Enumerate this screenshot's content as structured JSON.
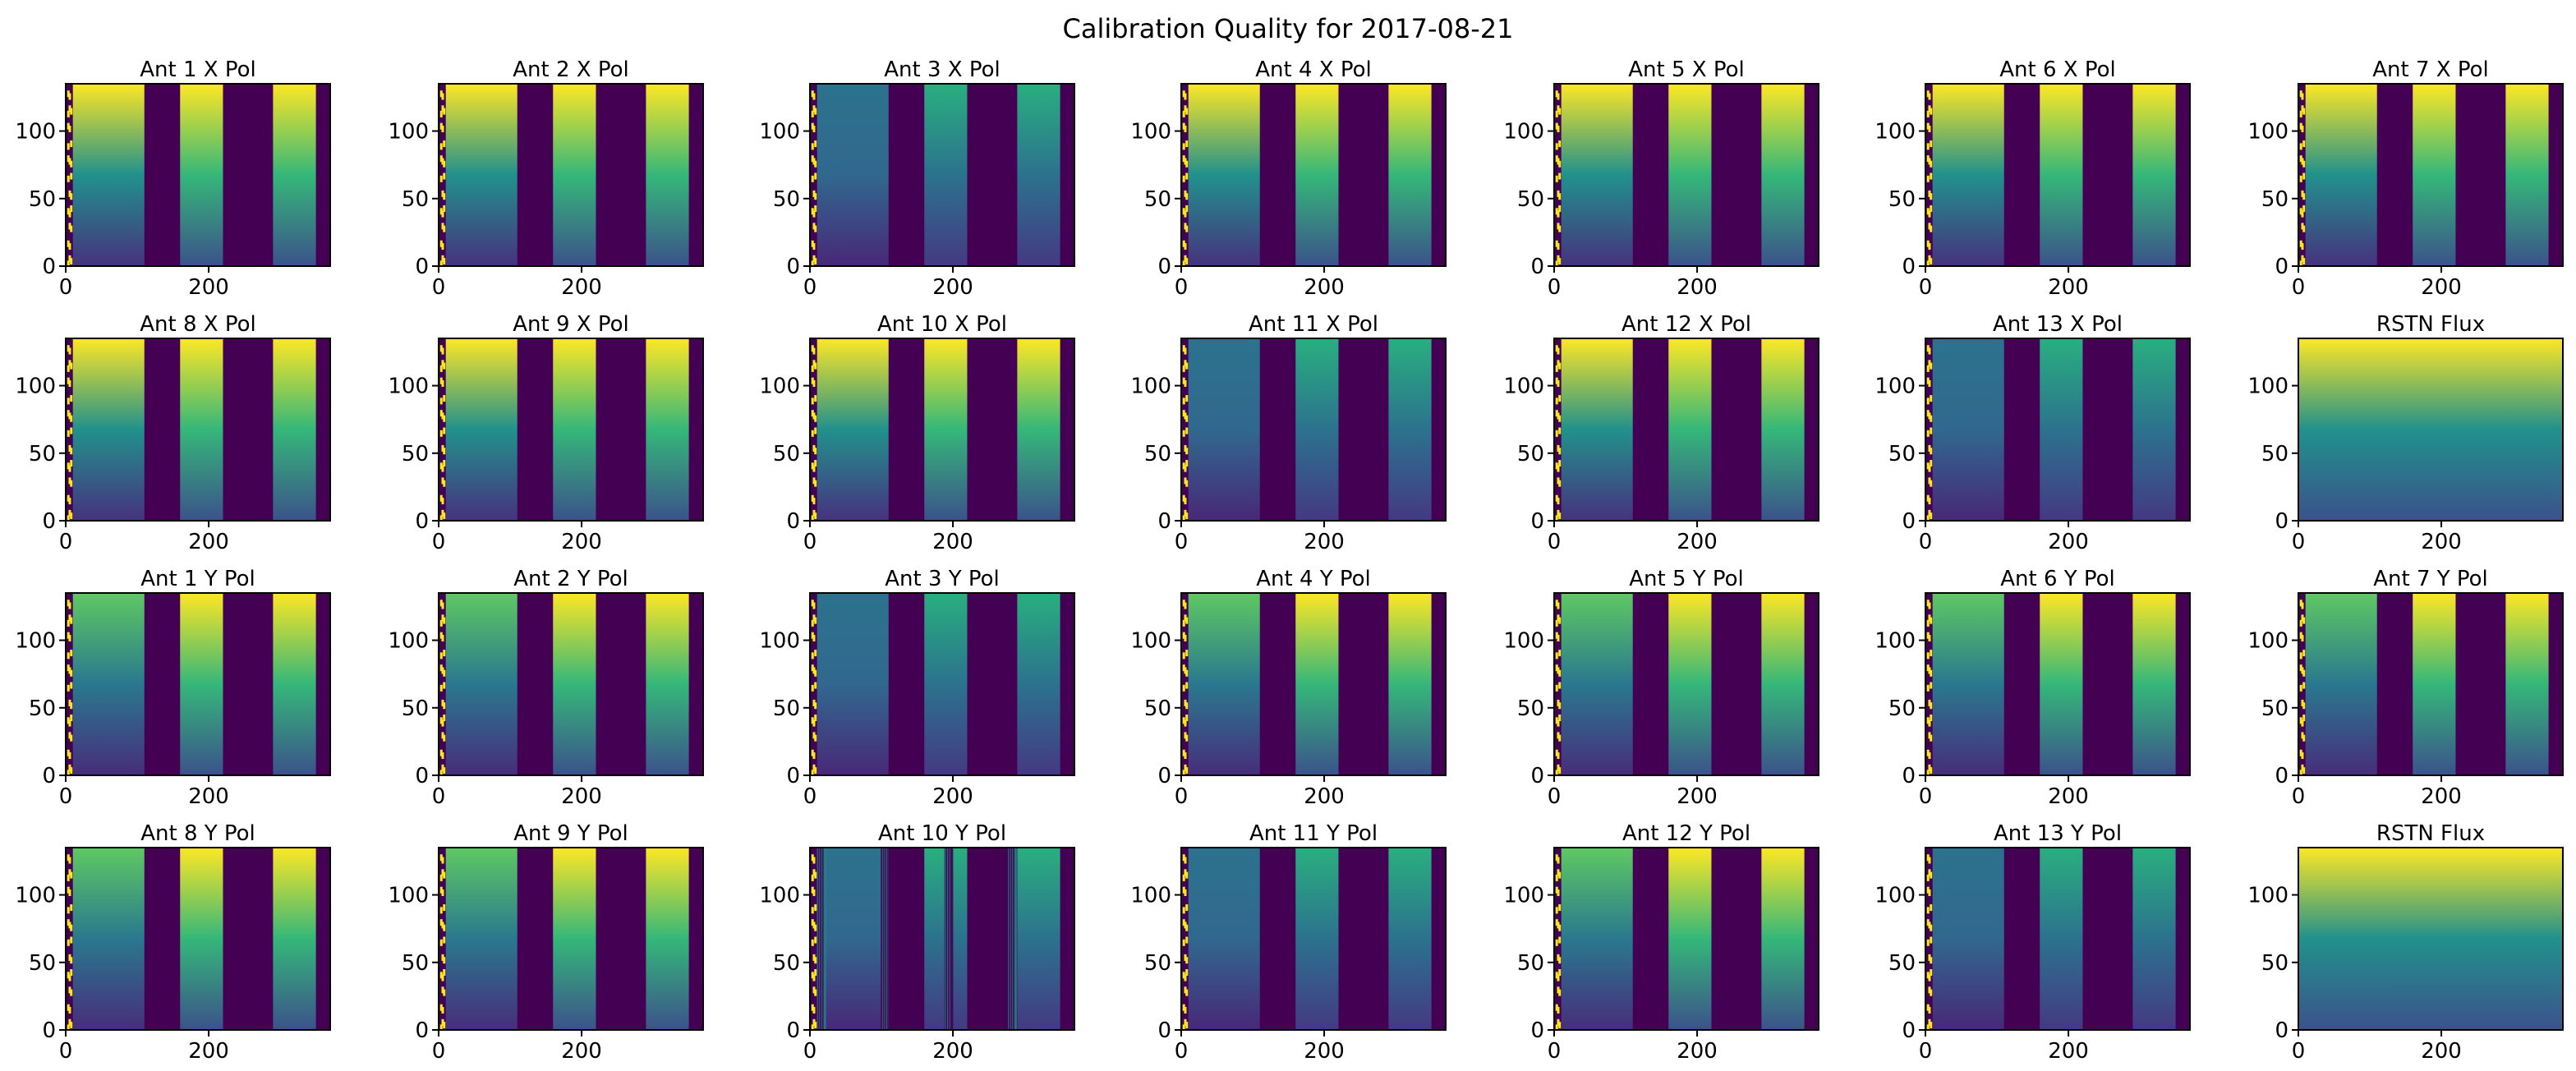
{
  "figure": {
    "title": "Calibration Quality for 2017-08-21"
  },
  "chart_data": {
    "type": "heatmap",
    "layout": {
      "rows": 4,
      "cols": 7
    },
    "xlim": [
      0,
      370
    ],
    "ylim": [
      0,
      135
    ],
    "xticks": [
      0,
      200
    ],
    "yticks": [
      0,
      50,
      100
    ],
    "colormap": "viridis",
    "colors": {
      "low": "#440154",
      "mid": "#21918c",
      "high": "#fde725"
    },
    "panels": [
      {
        "title": "Ant 1 X Pol",
        "kind": "ant",
        "variant": "x"
      },
      {
        "title": "Ant 2 X Pol",
        "kind": "ant",
        "variant": "x"
      },
      {
        "title": "Ant 3 X Pol",
        "kind": "ant",
        "variant": "faint"
      },
      {
        "title": "Ant 4 X Pol",
        "kind": "ant",
        "variant": "x"
      },
      {
        "title": "Ant 5 X Pol",
        "kind": "ant",
        "variant": "x"
      },
      {
        "title": "Ant 6 X Pol",
        "kind": "ant",
        "variant": "x"
      },
      {
        "title": "Ant 7 X Pol",
        "kind": "ant",
        "variant": "x"
      },
      {
        "title": "Ant 8 X Pol",
        "kind": "ant",
        "variant": "x"
      },
      {
        "title": "Ant 9 X Pol",
        "kind": "ant",
        "variant": "x"
      },
      {
        "title": "Ant 10 X Pol",
        "kind": "ant",
        "variant": "x"
      },
      {
        "title": "Ant 11 X Pol",
        "kind": "ant",
        "variant": "faint"
      },
      {
        "title": "Ant 12 X Pol",
        "kind": "ant",
        "variant": "x"
      },
      {
        "title": "Ant 13 X Pol",
        "kind": "ant",
        "variant": "faint"
      },
      {
        "title": "RSTN Flux",
        "kind": "flux",
        "variant": "flux"
      },
      {
        "title": "Ant 1 Y Pol",
        "kind": "ant",
        "variant": "y"
      },
      {
        "title": "Ant 2 Y Pol",
        "kind": "ant",
        "variant": "y"
      },
      {
        "title": "Ant 3 Y Pol",
        "kind": "ant",
        "variant": "faint"
      },
      {
        "title": "Ant 4 Y Pol",
        "kind": "ant",
        "variant": "y"
      },
      {
        "title": "Ant 5 Y Pol",
        "kind": "ant",
        "variant": "y"
      },
      {
        "title": "Ant 6 Y Pol",
        "kind": "ant",
        "variant": "y"
      },
      {
        "title": "Ant 7 Y Pol",
        "kind": "ant",
        "variant": "y"
      },
      {
        "title": "Ant 8 Y Pol",
        "kind": "ant",
        "variant": "y"
      },
      {
        "title": "Ant 9 Y Pol",
        "kind": "ant",
        "variant": "y"
      },
      {
        "title": "Ant 10 Y Pol",
        "kind": "ant",
        "variant": "noisy"
      },
      {
        "title": "Ant 11 Y Pol",
        "kind": "ant",
        "variant": "faint"
      },
      {
        "title": "Ant 12 Y Pol",
        "kind": "ant",
        "variant": "y"
      },
      {
        "title": "Ant 13 Y Pol",
        "kind": "ant",
        "variant": "faint"
      },
      {
        "title": "RSTN Flux",
        "kind": "flux",
        "variant": "flux"
      }
    ],
    "bands": {
      "bright_regions_x": [
        [
          10,
          110
        ],
        [
          160,
          220
        ],
        [
          290,
          350
        ]
      ],
      "dark_regions_x": [
        [
          110,
          160
        ],
        [
          220,
          290
        ],
        [
          350,
          370
        ]
      ]
    }
  }
}
